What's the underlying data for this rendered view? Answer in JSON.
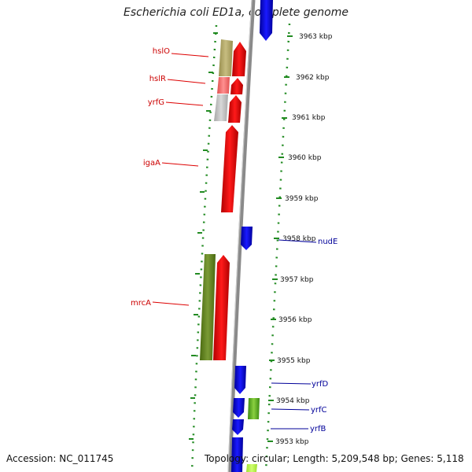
{
  "title": "Escherichia coli ED1a, complete genome",
  "accession": "Accession: NC_011745",
  "summary": "Topology: circular; Length: 5,209,548 bp; Genes: 5,118",
  "colors": {
    "forward_gene": "#ff0000",
    "reverse_gene": "#0000ff",
    "label_forward": "#cc0000",
    "label_reverse": "#000099",
    "scale_ticks": "#228b22",
    "backbone": "#909090"
  },
  "scale_labels": [
    "3963 kbp",
    "3962 kbp",
    "3961 kbp",
    "3960 kbp",
    "3959 kbp",
    "3958 kbp",
    "3957 kbp",
    "3956 kbp",
    "3955 kbp",
    "3954 kbp",
    "3953 kbp"
  ],
  "gene_labels": {
    "left": [
      "hslO",
      "hslR",
      "yrfG",
      "igaA",
      "mrcA"
    ],
    "right": [
      "nudE",
      "yrfD",
      "yrfC",
      "yrfB"
    ]
  }
}
